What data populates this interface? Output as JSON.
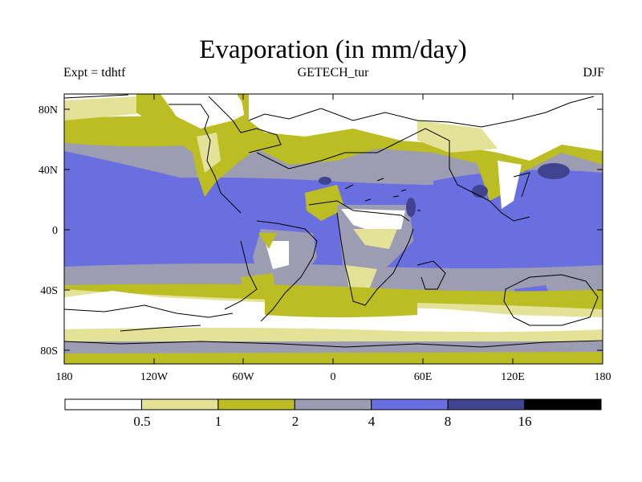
{
  "title": "Evaporation (in mm/day)",
  "experiment_label": "Expt = tdhtf",
  "dataset_label": "GETECH_tur",
  "season_label": "DJF",
  "y_axis_ticks": [
    "80N",
    "40N",
    "0",
    "40S",
    "80S"
  ],
  "x_axis_ticks": [
    "180",
    "120W",
    "60W",
    "0",
    "60E",
    "120E",
    "180"
  ],
  "legend": {
    "labels": [
      "0.5",
      "1",
      "2",
      "4",
      "8",
      "16"
    ],
    "colors": [
      "#ffffff",
      "#e4e296",
      "#bcbd23",
      "#9c9cb3",
      "#6a6fe0",
      "#3f4390",
      "#000000"
    ]
  }
}
